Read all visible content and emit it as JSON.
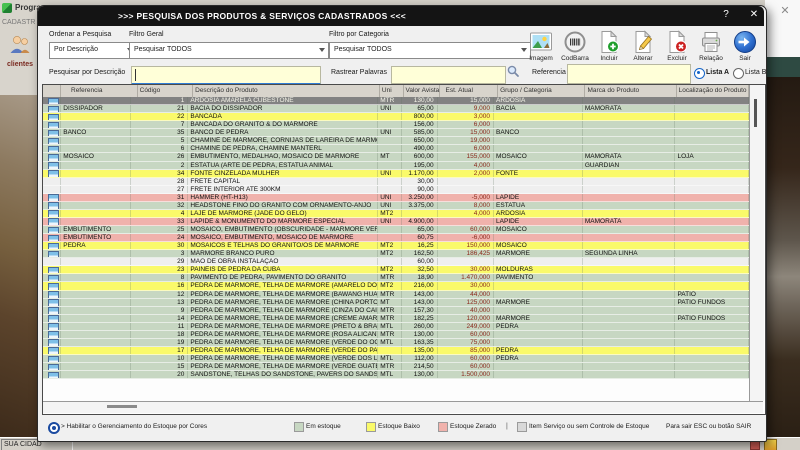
{
  "window": {
    "title": ">>>  PESQUISA DOS PRODUTOS & SERVIÇOS CADASTRADOS  <<<",
    "help": "?",
    "close": "✕"
  },
  "background": {
    "app_title": "Progra",
    "menu_text": "CADASTR",
    "clientes_label": "clientes",
    "statusbar_text": "SUA CIDAD",
    "bg_close": "✕"
  },
  "filters": {
    "ordenar_label": "Ordenar a Pesquisa",
    "ordenar_value": "Por Descrição",
    "filtro_geral_label": "Filtro Geral",
    "filtro_geral_value": "Pesquisar TODOS",
    "filtro_categoria_label": "Filtro por Categoria",
    "filtro_categoria_value": "Pesquisar TODOS",
    "pesquisar_descricao_label": "Pesquisar por Descrição",
    "rastrear_label": "Rastrear Palavras",
    "referencia_label": "Referencia",
    "lista_a": "Lista A",
    "lista_b": "Lista B"
  },
  "toolbar": [
    {
      "label": "Imagem",
      "icon": "image-icon"
    },
    {
      "label": "CodBarra",
      "icon": "barcode-icon"
    },
    {
      "label": "Incluir",
      "icon": "document-add-icon"
    },
    {
      "label": "Alterar",
      "icon": "document-edit-icon"
    },
    {
      "label": "Excluir",
      "icon": "document-delete-icon"
    },
    {
      "label": "Relação",
      "icon": "report-icon"
    },
    {
      "label": "Sair",
      "icon": "exit-icon"
    }
  ],
  "table": {
    "headers": [
      "Referencia",
      "Código",
      "Descrição do Produto",
      "Uni",
      "Valor Avista",
      "Est. Atual",
      "Grupo / Categoria",
      "Marca do Produto",
      "Localização do Produto"
    ],
    "rows": [
      {
        "ref": "",
        "cod": "1",
        "desc": "ARDOSIA AMARELA CUBESTONE",
        "uni": "MTR",
        "valor": "130,00",
        "est": "15,000",
        "grupo": "ARDOSIA",
        "marca": "",
        "loc": "",
        "status": "selected"
      },
      {
        "ref": "DISSIPADOR",
        "cod": "21",
        "desc": "BACIA DO DISSIPADOR",
        "uni": "UNI",
        "valor": "65,00",
        "est": "9,000",
        "grupo": "BACIA",
        "marca": "MAMORATA",
        "loc": "",
        "status": "ok"
      },
      {
        "ref": "",
        "cod": "22",
        "desc": "BANCADA",
        "uni": "",
        "valor": "800,00",
        "est": "3,000",
        "grupo": "",
        "marca": "",
        "loc": "",
        "status": "low"
      },
      {
        "ref": "",
        "cod": "7",
        "desc": "BANCADA DO GRANITO & DO MÁRMORE",
        "uni": "",
        "valor": "156,00",
        "est": "6,000",
        "grupo": "",
        "marca": "",
        "loc": "",
        "status": "ok"
      },
      {
        "ref": "BANCO",
        "cod": "35",
        "desc": "BANCO DE PEDRA",
        "uni": "UNI",
        "valor": "585,00",
        "est": "15,000",
        "grupo": "BANCO",
        "marca": "",
        "loc": "",
        "status": "ok"
      },
      {
        "ref": "",
        "cod": "5",
        "desc": "CHAMINÉ DE MÁRMORE, CORNIJAS DE LAREIRA DE MÁRMORE DA CHAMIN",
        "uni": "",
        "valor": "650,00",
        "est": "19,000",
        "grupo": "",
        "marca": "",
        "loc": "",
        "status": "ok"
      },
      {
        "ref": "",
        "cod": "6",
        "desc": "CHAMINÉ DE PEDRA, CHAMINÉ MANTERL",
        "uni": "",
        "valor": "490,00",
        "est": "6,000",
        "grupo": "",
        "marca": "",
        "loc": "",
        "status": "ok"
      },
      {
        "ref": "MOSAICO",
        "cod": "26",
        "desc": "EMBUTIMENTO, MEDALHAO, MOSAICO DE MÁRMORE",
        "uni": "MT",
        "valor": "600,00",
        "est": "155,000",
        "grupo": "MOSAICO",
        "marca": "MAMORATA",
        "loc": "LOJA",
        "status": "ok"
      },
      {
        "ref": "",
        "cod": "2",
        "desc": "ESTATUA (ARTE DE PEDRA, ESTATUA ANIMAL",
        "uni": "",
        "valor": "195,00",
        "est": "4,000",
        "grupo": "",
        "marca": "GUARDIAN",
        "loc": "",
        "status": "ok"
      },
      {
        "ref": "",
        "cod": "34",
        "desc": "FONTE CINZELADA MULHER",
        "uni": "UNI",
        "valor": "1.170,00",
        "est": "2,000",
        "grupo": "FONTE",
        "marca": "",
        "loc": "",
        "status": "low"
      },
      {
        "ref": "",
        "cod": "28",
        "desc": "FRETE CAPITAL",
        "uni": "",
        "valor": "30,00",
        "est": "",
        "grupo": "",
        "marca": "",
        "loc": "",
        "status": "none"
      },
      {
        "ref": "",
        "cod": "27",
        "desc": "FRETE INTERIOR ATÉ 300KM",
        "uni": "",
        "valor": "90,00",
        "est": "",
        "grupo": "",
        "marca": "",
        "loc": "",
        "status": "none"
      },
      {
        "ref": "",
        "cod": "31",
        "desc": "HAMMER (HT-H13)",
        "uni": "UNI",
        "valor": "3.250,00",
        "est": "-5,000",
        "grupo": "LAPIDE",
        "marca": "",
        "loc": "",
        "status": "zero"
      },
      {
        "ref": "",
        "cod": "32",
        "desc": "HEADSTONE FINO DO GRANITO COM ORNAMENTO-ANJO",
        "uni": "UNI",
        "valor": "3.375,00",
        "est": "8,000",
        "grupo": "ESTATUA",
        "marca": "",
        "loc": "",
        "status": "ok"
      },
      {
        "ref": "",
        "cod": "4",
        "desc": "LAJE DE MÁRMORE (JADE DO GELO)",
        "uni": "MT2",
        "valor": "",
        "est": "4,000",
        "grupo": "ARDOSIA",
        "marca": "",
        "loc": "",
        "status": "low"
      },
      {
        "ref": "",
        "cod": "33",
        "desc": "LÁPIDE & MONUMENTO DO MÁRMORE ESPECIAL",
        "uni": "UNI",
        "valor": "4.900,00",
        "est": "",
        "grupo": "LAPIDE",
        "marca": "MAMORATA",
        "loc": "",
        "status": "zero"
      },
      {
        "ref": "EMBUTIMENTO",
        "cod": "25",
        "desc": "MOSAICO, EMBUTIMENTO (OBSCURIDADE - MÁRMORE VERDE)",
        "uni": "",
        "valor": "65,00",
        "est": "60,000",
        "grupo": "MOSAICO",
        "marca": "",
        "loc": "",
        "status": "ok"
      },
      {
        "ref": "EMBUTIMENTO",
        "cod": "24",
        "desc": "MOSAICO, EMBUTIMENTO, MOSAICO DE MÁRMORE",
        "uni": "",
        "valor": "60,75",
        "est": "-6,000",
        "grupo": "",
        "marca": "",
        "loc": "",
        "status": "zero"
      },
      {
        "ref": "PEDRA",
        "cod": "30",
        "desc": "MOSAICOS E TELHAS DO GRANITO/OS DE MÁRMORE",
        "uni": "MT2",
        "valor": "16,25",
        "est": "150,000",
        "grupo": "MOSAICO",
        "marca": "",
        "loc": "",
        "status": "low"
      },
      {
        "ref": "",
        "cod": "3",
        "desc": "MÁRMORE BRANCO PURO",
        "uni": "MT2",
        "valor": "162,50",
        "est": "186,425",
        "grupo": "MARMORE",
        "marca": "SEGUNDA LINHA",
        "loc": "",
        "status": "ok"
      },
      {
        "ref": "",
        "cod": "29",
        "desc": "MÃO DE OBRA INSTALAÇÃO",
        "uni": "",
        "valor": "60,00",
        "est": "",
        "grupo": "",
        "marca": "",
        "loc": "",
        "status": "none"
      },
      {
        "ref": "",
        "cod": "23",
        "desc": "PAINÉIS DE PEDRA DA CUBA",
        "uni": "MT2",
        "valor": "32,50",
        "est": "30,000",
        "grupo": "MOLDURAS",
        "marca": "",
        "loc": "",
        "status": "low"
      },
      {
        "ref": "",
        "cod": "8",
        "desc": "PAVIMENTO DE PEDRA, PAVIMENTO DO GRANITO",
        "uni": "MTR",
        "valor": "18,90",
        "est": "1.470,000",
        "grupo": "PAVIMENTO",
        "marca": "",
        "loc": "",
        "status": "ok"
      },
      {
        "ref": "",
        "cod": "16",
        "desc": "PEDRA DE MÁRMORE, TELHA DE MÁRMORE (AMARELO DO ONYX",
        "uni": "MT2",
        "valor": "216,00",
        "est": "30,000",
        "grupo": "",
        "marca": "",
        "loc": "",
        "status": "low"
      },
      {
        "ref": "",
        "cod": "12",
        "desc": "PEDRA DE MÁRMORE, TELHA DE MÁRMORE (BAWANG HUA)",
        "uni": "MTR",
        "valor": "143,00",
        "est": "44,000",
        "grupo": "",
        "marca": "",
        "loc": "PATIO",
        "status": "ok"
      },
      {
        "ref": "",
        "cod": "13",
        "desc": "PEDRA DE MÁRMORE, TELHA DE MÁRMORE (CHINA PORTORO)",
        "uni": "MT",
        "valor": "143,00",
        "est": "125,000",
        "grupo": "MARMORE",
        "marca": "",
        "loc": "PATIO FUNDOS",
        "status": "ok"
      },
      {
        "ref": "",
        "cod": "9",
        "desc": "PEDRA DE MÁRMORE, TELHA DE MÁRMORE (CINZA DO CAIR)",
        "uni": "MTR",
        "valor": "157,30",
        "est": "40,000",
        "grupo": "",
        "marca": "",
        "loc": "",
        "status": "ok"
      },
      {
        "ref": "",
        "cod": "14",
        "desc": "PEDRA DE MÁRMORE, TELHA DE MÁRMORE (CREME AMARELO)",
        "uni": "MTR",
        "valor": "182,25",
        "est": "120,000",
        "grupo": "MARMORE",
        "marca": "",
        "loc": "PATIO FUNDOS",
        "status": "ok"
      },
      {
        "ref": "",
        "cod": "11",
        "desc": "PEDRA DE MÁRMORE, TELHA DE MÁRMORE (PRETO & BRANCO)",
        "uni": "MTL",
        "valor": "260,00",
        "est": "249,000",
        "grupo": "PEDRA",
        "marca": "",
        "loc": "",
        "status": "ok"
      },
      {
        "ref": "",
        "cod": "18",
        "desc": "PEDRA DE MÁRMORE, TELHA DE MÁRMORE (ROSA ALICANTE)",
        "uni": "MTR",
        "valor": "130,00",
        "est": "60,000",
        "grupo": "",
        "marca": "",
        "loc": "",
        "status": "ok"
      },
      {
        "ref": "",
        "cod": "19",
        "desc": "PEDRA DE MÁRMORE, TELHA DE MÁRMORE (VERDE DO OCEANO",
        "uni": "MTL",
        "valor": "163,35",
        "est": "75,000",
        "grupo": "",
        "marca": "",
        "loc": "",
        "status": "ok"
      },
      {
        "ref": "",
        "cod": "17",
        "desc": "PEDRA DE MÁRMORE, TELHA DE MÁRMORE (VERDE DO PAVÃO)",
        "uni": "",
        "valor": "135,00",
        "est": "85,000",
        "grupo": "PEDRA",
        "marca": "",
        "loc": "",
        "status": "low"
      },
      {
        "ref": "",
        "cod": "10",
        "desc": "PEDRA DE MÁRMORE, TELHA DE MÁRMORE (VERDE DOS LOTUS",
        "uni": "MTL",
        "valor": "112,00",
        "est": "60,000",
        "grupo": "PEDRA",
        "marca": "",
        "loc": "",
        "status": "ok"
      },
      {
        "ref": "",
        "cod": "15",
        "desc": "PEDRA DE MÁRMORE, TELHA DE MÁRMORE (VERDE GUATEMALA",
        "uni": "MTR",
        "valor": "214,50",
        "est": "60,000",
        "grupo": "",
        "marca": "",
        "loc": "",
        "status": "ok"
      },
      {
        "ref": "",
        "cod": "20",
        "desc": "SANDSTONE, TELHAS DO SANDSTONE, PAVERS DO SANDSTONE",
        "uni": "MTL",
        "valor": "130,00",
        "est": "1.500,000",
        "grupo": "",
        "marca": "",
        "loc": "",
        "status": "ok"
      }
    ]
  },
  "legend": {
    "enable_label": "> Habilitar o Gerenciamento do Estoque por Cores",
    "items": [
      {
        "label": "Em estoque",
        "color": "#c7d7c2"
      },
      {
        "label": "Estoque Baixo",
        "color": "#fafa6a"
      },
      {
        "label": "Estoque Zerado",
        "color": "#f0b2ac"
      },
      {
        "label": "Item Serviço ou sem Controle de Estoque",
        "color": "#d8d8d8"
      }
    ],
    "separator": "|",
    "exit_hint": "Para sair ESC ou botão SAIR"
  },
  "colors": {
    "row_ok": "#c7d7c2",
    "row_low": "#fafa6a",
    "row_zero": "#f0b2ac",
    "row_none": "#efefef",
    "row_selected_bg": "#828282",
    "row_selected_text": "#f6f6ea",
    "est_text": "#8b2a1e",
    "input_bg": "#ffffd8",
    "accent_blue": "#1464c8"
  }
}
